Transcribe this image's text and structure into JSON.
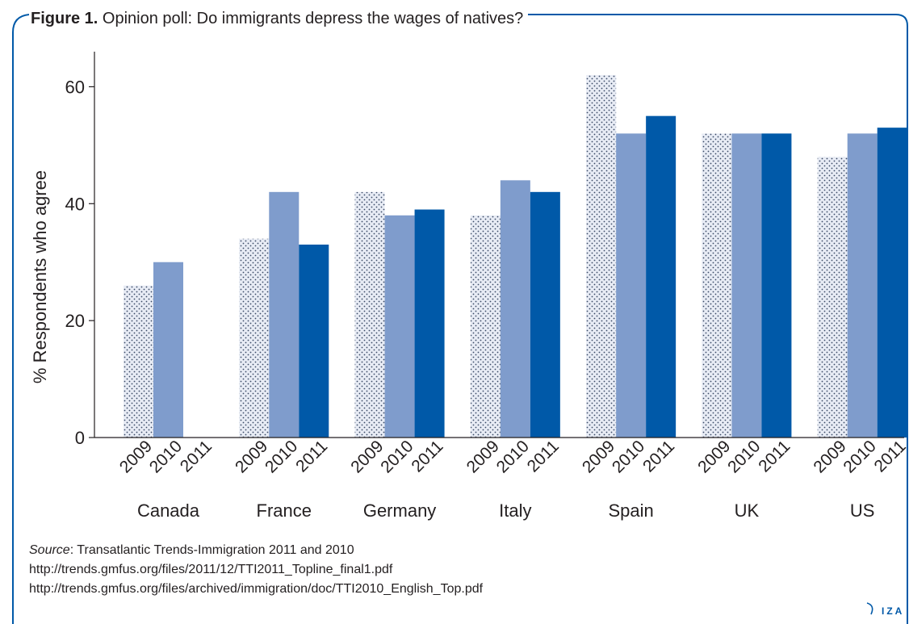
{
  "figure": {
    "label": "Figure 1.",
    "title": "Opinion poll: Do immigrants depress the wages of natives?"
  },
  "chart_data": {
    "type": "bar",
    "title": "Opinion poll: Do immigrants depress the wages of natives?",
    "ylabel": "% Respondents who agree",
    "xlabel": "",
    "ylim": [
      0,
      66
    ],
    "yticks": [
      0,
      20,
      40,
      60
    ],
    "grid": false,
    "categories": [
      "Canada",
      "France",
      "Germany",
      "Italy",
      "Spain",
      "UK",
      "US"
    ],
    "subcategories": [
      "2009",
      "2010",
      "2011"
    ],
    "series": [
      {
        "name": "2009",
        "values": [
          26,
          34,
          42,
          38,
          62,
          52,
          48
        ],
        "color": "#e8ecf5",
        "pattern": "dotted"
      },
      {
        "name": "2010",
        "values": [
          30,
          42,
          38,
          44,
          52,
          52,
          52
        ],
        "color": "#7f9ccc"
      },
      {
        "name": "2011",
        "values": [
          null,
          33,
          39,
          42,
          55,
          52,
          53
        ],
        "color": "#0059a8"
      }
    ]
  },
  "source": {
    "label": "Source",
    "text": ": Transatlantic Trends-Immigration 2011 and 2010",
    "links": [
      "http://trends.gmfus.org/files/2011/12/TTI2011_Topline_final1.pdf",
      "http://trends.gmfus.org/files/archived/immigration/doc/TTI2010_English_Top.pdf"
    ]
  },
  "logo": {
    "text": "IZA",
    "icon": "iza-swoosh-icon",
    "color": "#0059a8"
  }
}
